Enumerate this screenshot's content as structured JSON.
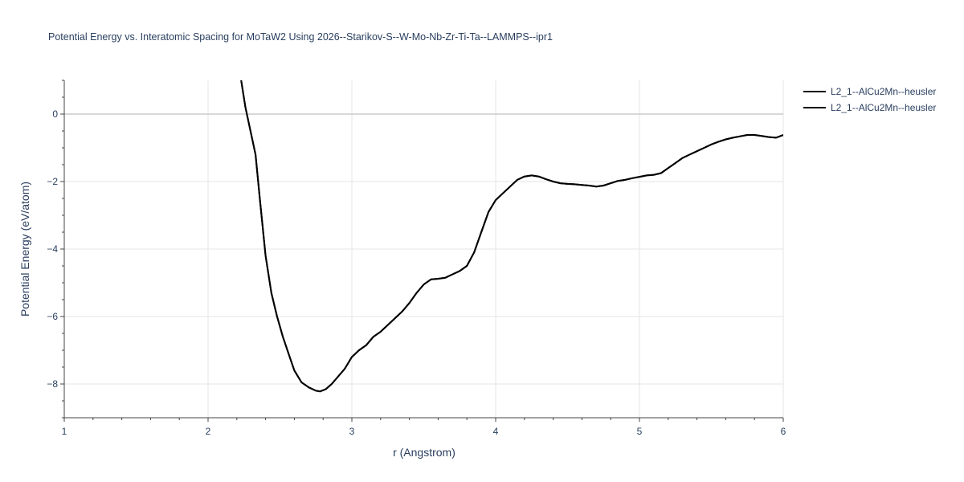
{
  "chart_data": {
    "type": "line",
    "title": "Potential Energy vs. Interatomic Spacing for MoTaW2 Using 2026--Starikov-S--W-Mo-Nb-Zr-Ti-Ta--LAMMPS--ipr1",
    "xlabel": "r (Angstrom)",
    "ylabel": "Potential Energy (eV/atom)",
    "xlim": [
      1,
      6
    ],
    "ylim": [
      -9,
      1
    ],
    "xticks": [
      1,
      2,
      3,
      4,
      5,
      6
    ],
    "yticks": [
      0,
      -2,
      -4,
      -6,
      -8
    ],
    "ytick_labels": [
      "0",
      "−2",
      "−4",
      "−6",
      "−8"
    ],
    "grid": true,
    "legend_position": "top-right",
    "series": [
      {
        "name": "L2_1--AlCu2Mn--heusler",
        "color": "#000000",
        "x": [
          2.23,
          2.26,
          2.3,
          2.33,
          2.36,
          2.4,
          2.44,
          2.48,
          2.52,
          2.56,
          2.6,
          2.65,
          2.7,
          2.75,
          2.78,
          2.82,
          2.86,
          2.9,
          2.95,
          3.0,
          3.05,
          3.1,
          3.15,
          3.2,
          3.25,
          3.3,
          3.35,
          3.4,
          3.45,
          3.5,
          3.55,
          3.6,
          3.65,
          3.7,
          3.75,
          3.8,
          3.85,
          3.9,
          3.95,
          4.0,
          4.05,
          4.1,
          4.15,
          4.2,
          4.25,
          4.3,
          4.35,
          4.4,
          4.45,
          4.5,
          4.55,
          4.6,
          4.65,
          4.7,
          4.75,
          4.8,
          4.85,
          4.9,
          4.95,
          5.0,
          5.05,
          5.1,
          5.15,
          5.2,
          5.25,
          5.3,
          5.35,
          5.4,
          5.45,
          5.5,
          5.55,
          5.6,
          5.65,
          5.7,
          5.75,
          5.8,
          5.85,
          5.9,
          5.95,
          6.0
        ],
        "y": [
          1.0,
          0.2,
          -0.6,
          -1.2,
          -2.5,
          -4.2,
          -5.3,
          -6.0,
          -6.6,
          -7.1,
          -7.6,
          -7.95,
          -8.1,
          -8.2,
          -8.22,
          -8.15,
          -8.0,
          -7.8,
          -7.55,
          -7.2,
          -7.0,
          -6.85,
          -6.6,
          -6.45,
          -6.25,
          -6.05,
          -5.85,
          -5.6,
          -5.3,
          -5.05,
          -4.9,
          -4.88,
          -4.85,
          -4.75,
          -4.65,
          -4.5,
          -4.1,
          -3.5,
          -2.9,
          -2.55,
          -2.35,
          -2.15,
          -1.95,
          -1.85,
          -1.82,
          -1.85,
          -1.93,
          -2.0,
          -2.05,
          -2.07,
          -2.08,
          -2.1,
          -2.12,
          -2.15,
          -2.12,
          -2.05,
          -1.98,
          -1.95,
          -1.9,
          -1.86,
          -1.82,
          -1.8,
          -1.75,
          -1.6,
          -1.45,
          -1.3,
          -1.2,
          -1.1,
          -1.0,
          -0.9,
          -0.82,
          -0.75,
          -0.7,
          -0.66,
          -0.62,
          -0.62,
          -0.65,
          -0.68,
          -0.7,
          -0.62
        ]
      },
      {
        "name": "L2_1--AlCu2Mn--heusler",
        "color": "#000000",
        "x": [
          2.23,
          2.26,
          2.3,
          2.33,
          2.36,
          2.4,
          2.44,
          2.48,
          2.52,
          2.56,
          2.6,
          2.65,
          2.7,
          2.75,
          2.78,
          2.82,
          2.86,
          2.9,
          2.95,
          3.0,
          3.05,
          3.1,
          3.15,
          3.2,
          3.25,
          3.3,
          3.35,
          3.4,
          3.45,
          3.5,
          3.55,
          3.6,
          3.65,
          3.7,
          3.75,
          3.8,
          3.85,
          3.9,
          3.95,
          4.0,
          4.05,
          4.1,
          4.15,
          4.2,
          4.25,
          4.3,
          4.35,
          4.4,
          4.45,
          4.5,
          4.55,
          4.6,
          4.65,
          4.7,
          4.75,
          4.8,
          4.85,
          4.9,
          4.95,
          5.0,
          5.05,
          5.1,
          5.15,
          5.2,
          5.25,
          5.3,
          5.35,
          5.4,
          5.45,
          5.5,
          5.55,
          5.6,
          5.65,
          5.7,
          5.75,
          5.8,
          5.85,
          5.9,
          5.95,
          6.0
        ],
        "y": [
          1.0,
          0.2,
          -0.6,
          -1.2,
          -2.5,
          -4.2,
          -5.3,
          -6.0,
          -6.6,
          -7.1,
          -7.6,
          -7.95,
          -8.1,
          -8.2,
          -8.22,
          -8.15,
          -8.0,
          -7.8,
          -7.55,
          -7.2,
          -7.0,
          -6.85,
          -6.6,
          -6.45,
          -6.25,
          -6.05,
          -5.85,
          -5.6,
          -5.3,
          -5.05,
          -4.9,
          -4.88,
          -4.85,
          -4.75,
          -4.65,
          -4.5,
          -4.1,
          -3.5,
          -2.9,
          -2.55,
          -2.35,
          -2.15,
          -1.95,
          -1.85,
          -1.82,
          -1.85,
          -1.93,
          -2.0,
          -2.05,
          -2.07,
          -2.08,
          -2.1,
          -2.12,
          -2.15,
          -2.12,
          -2.05,
          -1.98,
          -1.95,
          -1.9,
          -1.86,
          -1.82,
          -1.8,
          -1.75,
          -1.6,
          -1.45,
          -1.3,
          -1.2,
          -1.1,
          -1.0,
          -0.9,
          -0.82,
          -0.75,
          -0.7,
          -0.66,
          -0.62,
          -0.62,
          -0.65,
          -0.68,
          -0.7,
          -0.62
        ]
      }
    ]
  }
}
